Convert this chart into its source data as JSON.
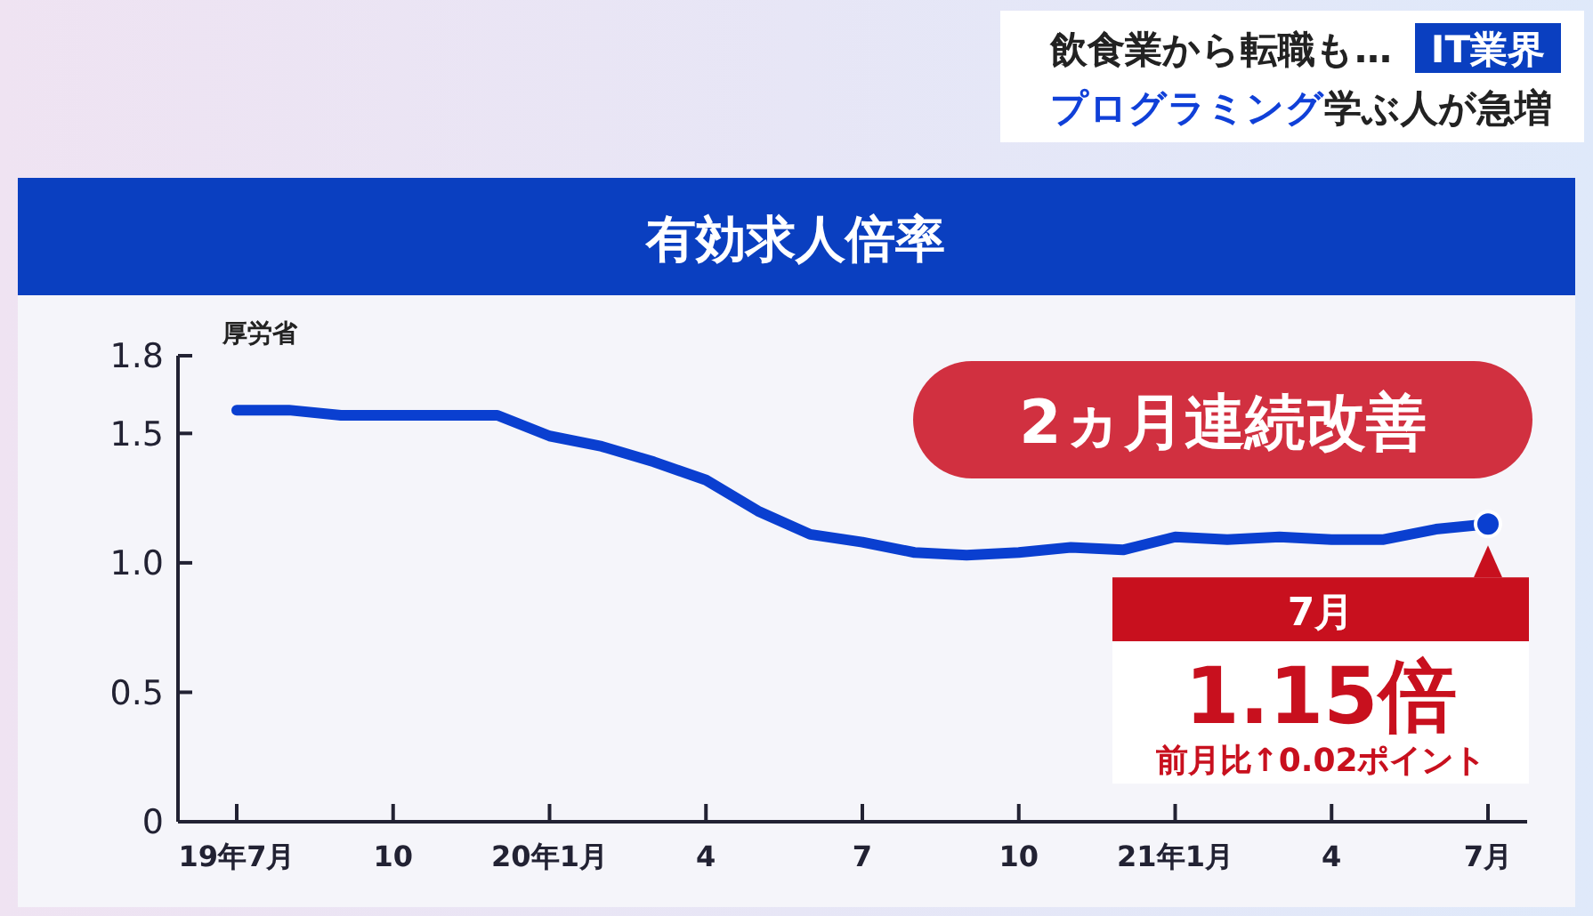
{
  "chart_data": {
    "type": "line",
    "title": "有効求人倍率",
    "categories": [
      "19年7月",
      null,
      null,
      "10",
      null,
      null,
      "20年1月",
      null,
      null,
      "4",
      null,
      null,
      "7",
      null,
      null,
      "10",
      null,
      null,
      "21年1月",
      null,
      null,
      "4",
      null,
      null,
      "7月"
    ],
    "series": [
      {
        "color": "#0a3fd0",
        "values": [
          1.59,
          1.59,
          1.57,
          1.57,
          1.57,
          1.57,
          1.49,
          1.45,
          1.39,
          1.32,
          1.2,
          1.11,
          1.08,
          1.04,
          1.03,
          1.04,
          1.06,
          1.05,
          1.1,
          1.09,
          1.1,
          1.09,
          1.09,
          1.13,
          1.15
        ]
      }
    ],
    "ylim": [
      0,
      1.8
    ],
    "yticks": [
      0,
      0.5,
      {
        "value": 1,
        "label": "1.0"
      },
      1.5,
      1.8
    ],
    "grid": false,
    "marker": "none",
    "line_style": "solid",
    "annotations": [
      "飲食業から転職も…",
      "IT業界",
      "プログラミング",
      "学ぶ人が急増",
      "厚労省",
      "2ヵ月連続改善",
      "7月",
      "1.15倍",
      "前月比↑0.02ポイント"
    ]
  }
}
